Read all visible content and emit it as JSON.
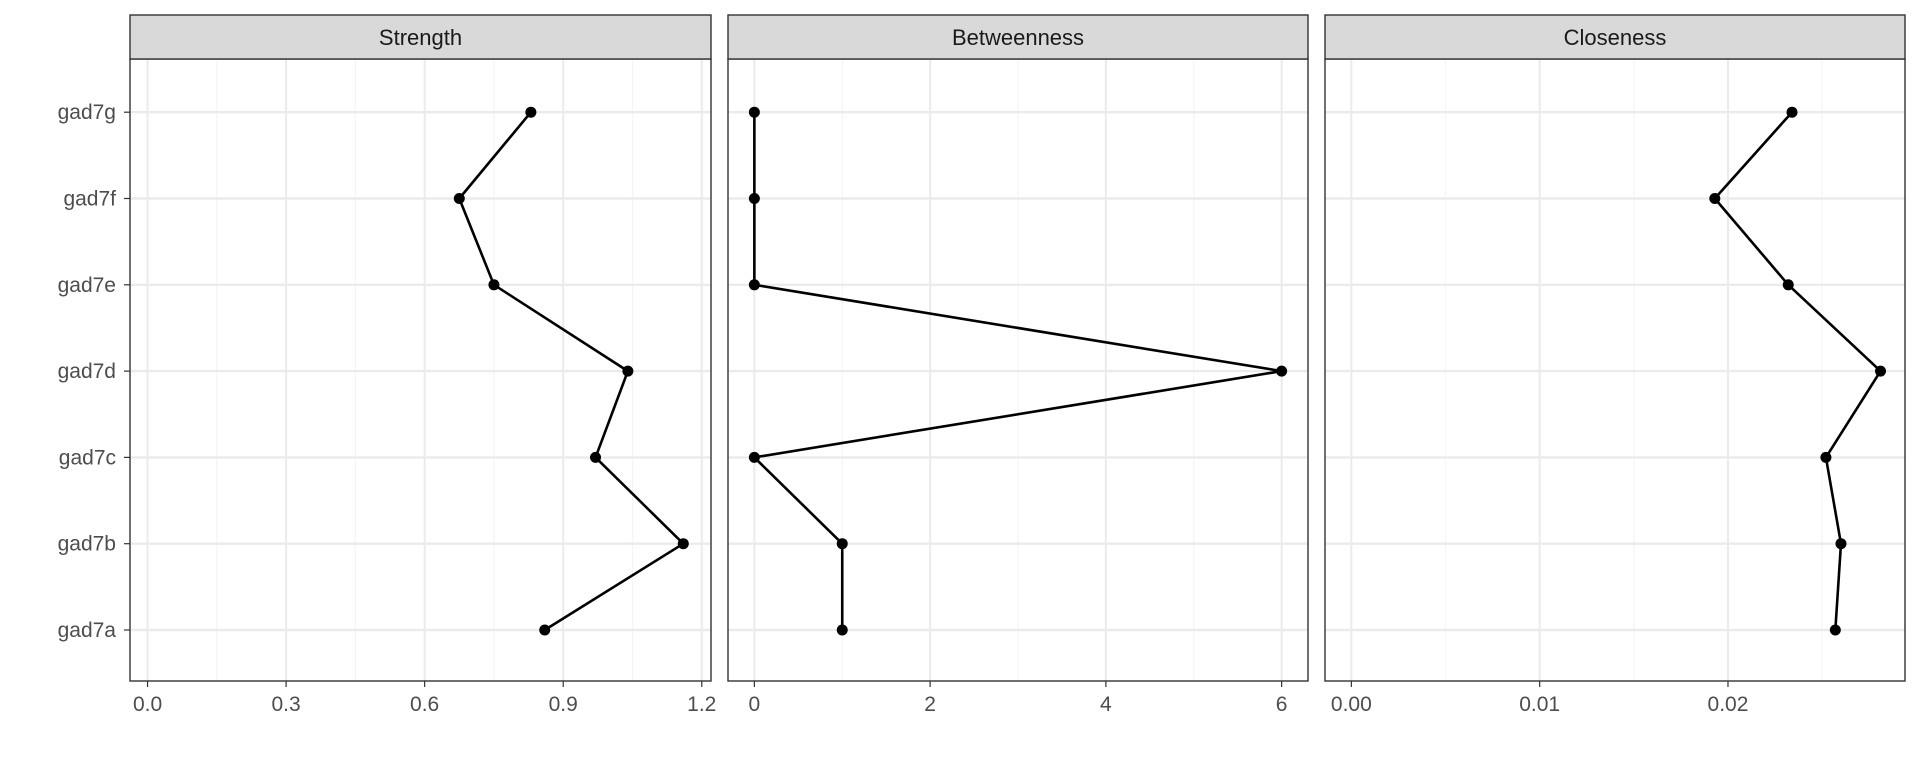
{
  "chart_data": {
    "type": "line",
    "layout": "faceted",
    "categories": [
      "gad7a",
      "gad7b",
      "gad7c",
      "gad7d",
      "gad7e",
      "gad7f",
      "gad7g"
    ],
    "grid": true,
    "theme": "bw",
    "colors": {
      "line": "#000000",
      "point": "#000000",
      "strip_bg": "#d9d9d9",
      "panel_border": "#333333",
      "grid_major": "#ebebeb",
      "grid_minor": "#f5f5f5",
      "tick_text": "#4d4d4d"
    },
    "facets": [
      {
        "title": "Strength",
        "xlim": [
          -0.038,
          1.22
        ],
        "ticks": [
          0,
          0.3,
          0.6,
          0.9,
          1.2
        ],
        "tick_labels": [
          "0.0",
          "0.3",
          "0.6",
          "0.9",
          "1.2"
        ],
        "values": [
          0.86,
          1.16,
          0.97,
          1.04,
          0.75,
          0.675,
          0.83
        ]
      },
      {
        "title": "Betweenness",
        "xlim": [
          -0.3,
          6.3
        ],
        "ticks": [
          0,
          2,
          4,
          6
        ],
        "tick_labels": [
          "0",
          "2",
          "4",
          "6"
        ],
        "values": [
          1,
          1,
          0,
          6,
          0,
          0,
          0
        ]
      },
      {
        "title": "Closeness",
        "xlim": [
          -0.0014,
          0.0294
        ],
        "ticks": [
          0,
          0.01,
          0.02
        ],
        "tick_labels": [
          "0.00",
          "0.01",
          "0.02"
        ],
        "values": [
          0.0257,
          0.026,
          0.0252,
          0.0281,
          0.0232,
          0.0193,
          0.0234
        ]
      }
    ]
  }
}
